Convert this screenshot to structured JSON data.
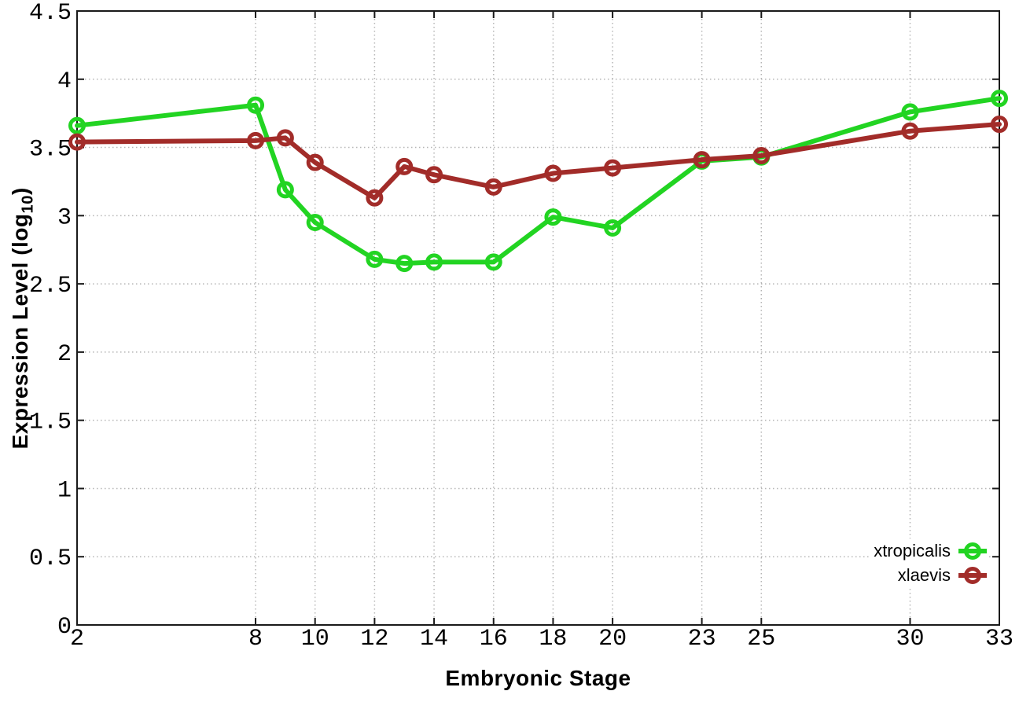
{
  "chart_data": {
    "type": "line",
    "title": "",
    "xlabel": "Embryonic Stage",
    "ylabel": {
      "pre": "Expression Level (log",
      "sub": "10",
      "post": ")"
    },
    "x": [
      2,
      8,
      9,
      10,
      12,
      13,
      14,
      16,
      18,
      20,
      23,
      25,
      30,
      33
    ],
    "series": [
      {
        "name": "xtropicalis",
        "color": "#22d422",
        "values": [
          3.66,
          3.81,
          3.19,
          2.95,
          2.68,
          2.65,
          2.66,
          2.66,
          2.99,
          2.91,
          3.4,
          3.43,
          3.76,
          3.86
        ]
      },
      {
        "name": "xlaevis",
        "color": "#a22c29",
        "values": [
          3.54,
          3.55,
          3.57,
          3.39,
          3.13,
          3.36,
          3.3,
          3.21,
          3.31,
          3.35,
          3.41,
          3.44,
          3.62,
          3.67
        ]
      }
    ],
    "xticks": [
      2,
      8,
      10,
      12,
      14,
      16,
      18,
      20,
      23,
      25,
      30,
      33
    ],
    "xtick_labels": [
      "2",
      "8",
      "10",
      "12",
      "14",
      "16",
      "18",
      "20",
      "23",
      "25",
      "30",
      "33"
    ],
    "yticks": [
      0,
      0.5,
      1,
      1.5,
      2,
      2.5,
      3,
      3.5,
      4,
      4.5
    ],
    "ytick_labels": [
      "0",
      "0.5",
      "1",
      "1.5",
      "2",
      "2.5",
      "3",
      "3.5",
      "4",
      "4.5"
    ],
    "xlim": [
      2,
      33
    ],
    "ylim": [
      0,
      4.5
    ],
    "grid": true,
    "legend_position": "bottom-right",
    "marker": "open-circle",
    "colors": {
      "background": "#ffffff",
      "border": "#1a1a1a",
      "grid": "#b5b5b5",
      "text": "#000000"
    }
  }
}
